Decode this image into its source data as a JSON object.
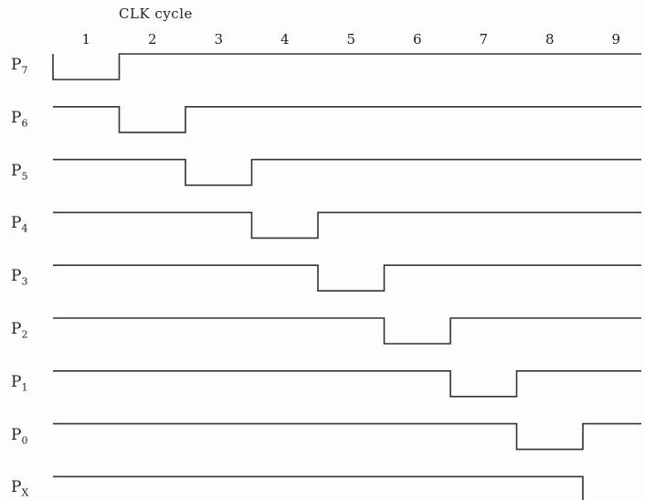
{
  "title": "CLK cycle",
  "cycles": [
    "1",
    "2",
    "3",
    "4",
    "5",
    "6",
    "7",
    "8",
    "9"
  ],
  "signals": [
    {
      "base": "P",
      "sub": "7",
      "low_cycle": 1
    },
    {
      "base": "P",
      "sub": "6",
      "low_cycle": 2
    },
    {
      "base": "P",
      "sub": "5",
      "low_cycle": 3
    },
    {
      "base": "P",
      "sub": "4",
      "low_cycle": 4
    },
    {
      "base": "P",
      "sub": "3",
      "low_cycle": 5
    },
    {
      "base": "P",
      "sub": "2",
      "low_cycle": 6
    },
    {
      "base": "P",
      "sub": "1",
      "low_cycle": 7
    },
    {
      "base": "P",
      "sub": "0",
      "low_cycle": 8
    },
    {
      "base": "P",
      "sub": "X",
      "low_cycle": 9
    }
  ],
  "colors": {
    "line": "#333333"
  }
}
